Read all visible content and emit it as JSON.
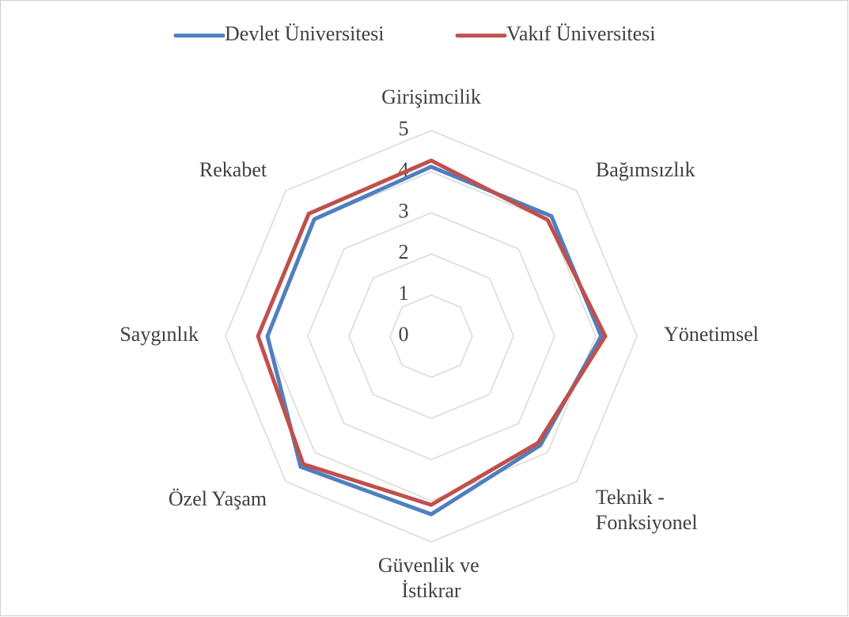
{
  "chart_data": {
    "type": "radar",
    "categories": [
      "Girişimcilik",
      "Bağımsızlık",
      "Yönetimsel",
      "Teknik - Fonksiyonel",
      "Güvenlik ve İstikrar",
      "Özel Yaşam",
      "Saygınlık",
      "Rekabet"
    ],
    "series": [
      {
        "name": "Devlet Üniversitesi",
        "color": "#4f7fc0",
        "values": [
          4.12,
          4.13,
          4.13,
          3.75,
          4.33,
          4.49,
          3.98,
          4.02
        ]
      },
      {
        "name": "Vakıf Üniversitesi",
        "color": "#c0504d",
        "values": [
          4.27,
          4.0,
          4.23,
          3.67,
          4.1,
          4.4,
          4.21,
          4.21
        ]
      }
    ],
    "rlim": [
      0,
      5
    ],
    "rticks": [
      0,
      1,
      2,
      3,
      4,
      5
    ],
    "grid": true,
    "legend": "top"
  }
}
